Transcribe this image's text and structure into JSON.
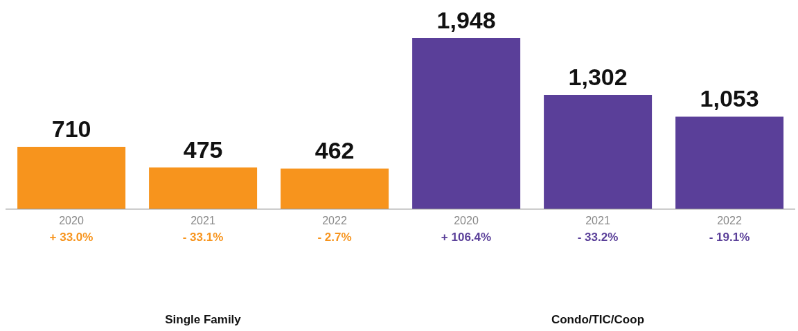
{
  "chart_data": {
    "type": "bar",
    "categories": [
      "2020",
      "2021",
      "2022",
      "2020",
      "2021",
      "2022"
    ],
    "stacked": true,
    "series": [
      {
        "color": "#f7941d",
        "values": [
          710,
          475,
          462,
          null,
          null,
          null
        ],
        "value_labels": [
          "710",
          "475",
          "462",
          null,
          null,
          null
        ]
      },
      {
        "color": "#5a3f99",
        "values": [
          null,
          null,
          null,
          1948,
          1302,
          1053
        ],
        "value_labels": [
          null,
          null,
          null,
          "1,948",
          "1,302",
          "1,053"
        ]
      }
    ],
    "grid": false,
    "legend": false,
    "annotations": [
      "+ 33.0%",
      "- 33.1%",
      "- 2.7%",
      "+ 106.4%",
      "- 33.2%",
      "- 19.1%",
      "Single Family",
      "Condo/TIC/Coop"
    ]
  }
}
